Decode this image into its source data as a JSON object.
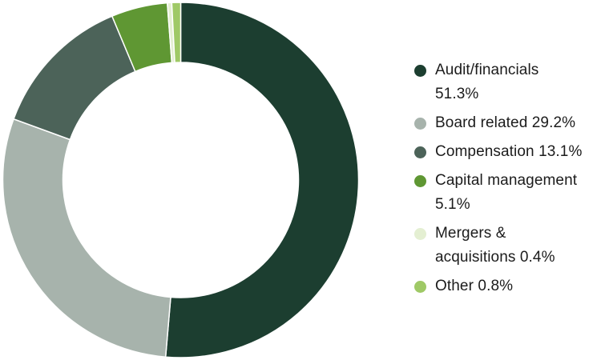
{
  "chart_data": {
    "type": "pie",
    "subtype": "donut",
    "title": "",
    "direction": "clockwise",
    "start_angle_deg": 0,
    "inner_radius_ratio": 0.66,
    "legend_position": "right",
    "slice_gap_color": "#ffffff",
    "series": [
      {
        "label": "Audit/financials",
        "value": 51.3,
        "color": "#1c3e30"
      },
      {
        "label": "Board related",
        "value": 29.2,
        "color": "#a7b3ac"
      },
      {
        "label": "Compensation",
        "value": 13.1,
        "color": "#4c6359"
      },
      {
        "label": "Capital management",
        "value": 5.1,
        "color": "#5f9733"
      },
      {
        "label": "Mergers & acquisitions",
        "value": 0.4,
        "color": "#e4efd2"
      },
      {
        "label": "Other",
        "value": 0.8,
        "color": "#9fc966"
      }
    ]
  },
  "legend": {
    "items": [
      {
        "lines": [
          "Audit/financials",
          "51.3%"
        ],
        "color": "#1c3e30"
      },
      {
        "lines": [
          "Board related 29.2%"
        ],
        "color": "#a7b3ac"
      },
      {
        "lines": [
          "Compensation 13.1%"
        ],
        "color": "#4c6359"
      },
      {
        "lines": [
          "Capital management",
          "5.1%"
        ],
        "color": "#5f9733"
      },
      {
        "lines": [
          "Mergers &",
          "acquisitions 0.4%"
        ],
        "color": "#e4efd2"
      },
      {
        "lines": [
          "Other 0.8%"
        ],
        "color": "#9fc966"
      }
    ]
  },
  "colors": {
    "background": "#ffffff",
    "text": "#1c1c1c"
  }
}
